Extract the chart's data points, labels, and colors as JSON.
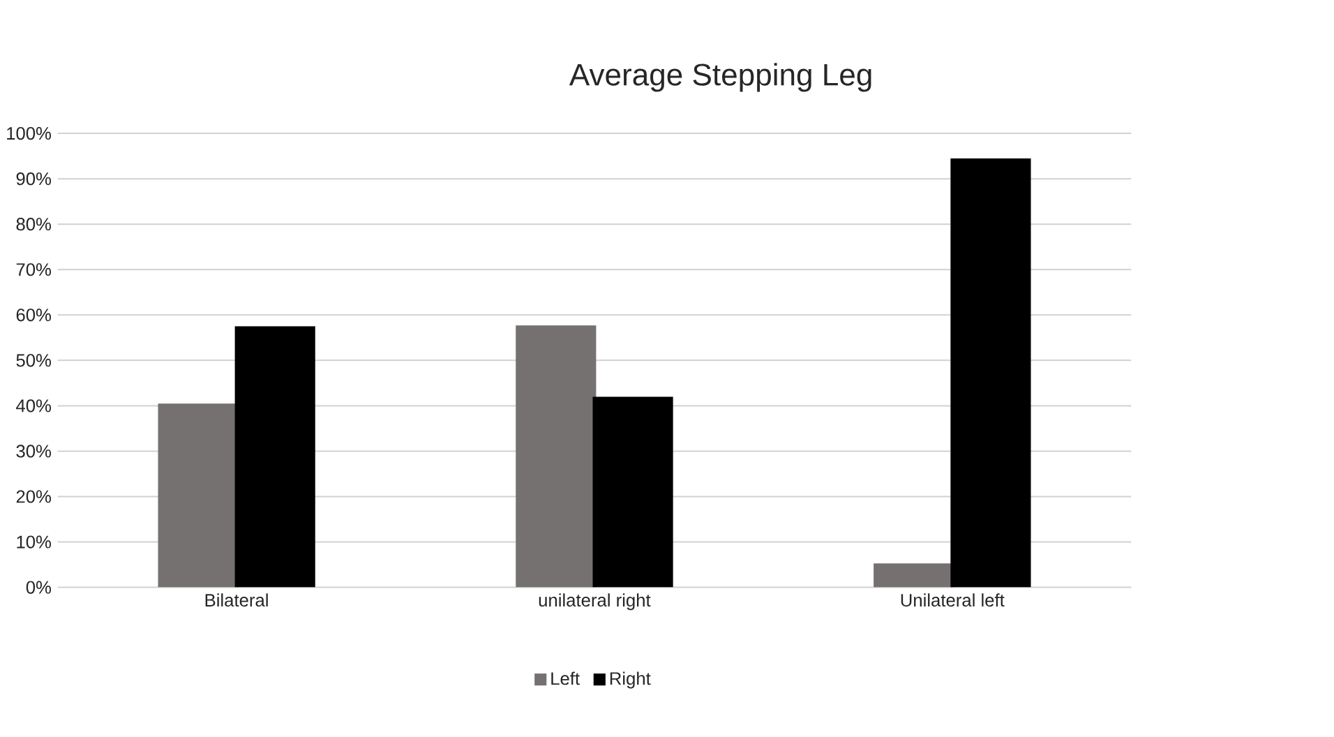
{
  "chart_data": {
    "type": "bar",
    "title": "Average Stepping Leg",
    "categories": [
      "Bilateral",
      "unilateral right",
      "Unilateral left"
    ],
    "series": [
      {
        "name": "Left",
        "color": "#767171",
        "values": [
          40.5,
          57.7,
          5.3
        ]
      },
      {
        "name": "Right",
        "color": "#000000",
        "values": [
          57.5,
          42.0,
          94.5
        ]
      }
    ],
    "ylim": [
      0,
      100
    ],
    "yticks": [
      {
        "value": 0,
        "label": "0%"
      },
      {
        "value": 10,
        "label": "10%"
      },
      {
        "value": 20,
        "label": "20%"
      },
      {
        "value": 30,
        "label": "30%"
      },
      {
        "value": 40,
        "label": "40%"
      },
      {
        "value": 50,
        "label": "50%"
      },
      {
        "value": 60,
        "label": "60%"
      },
      {
        "value": 70,
        "label": "70%"
      },
      {
        "value": 80,
        "label": "80%"
      },
      {
        "value": 90,
        "label": "90%"
      },
      {
        "value": 100,
        "label": "100%"
      }
    ],
    "grid": "y",
    "legend": "bottom"
  }
}
